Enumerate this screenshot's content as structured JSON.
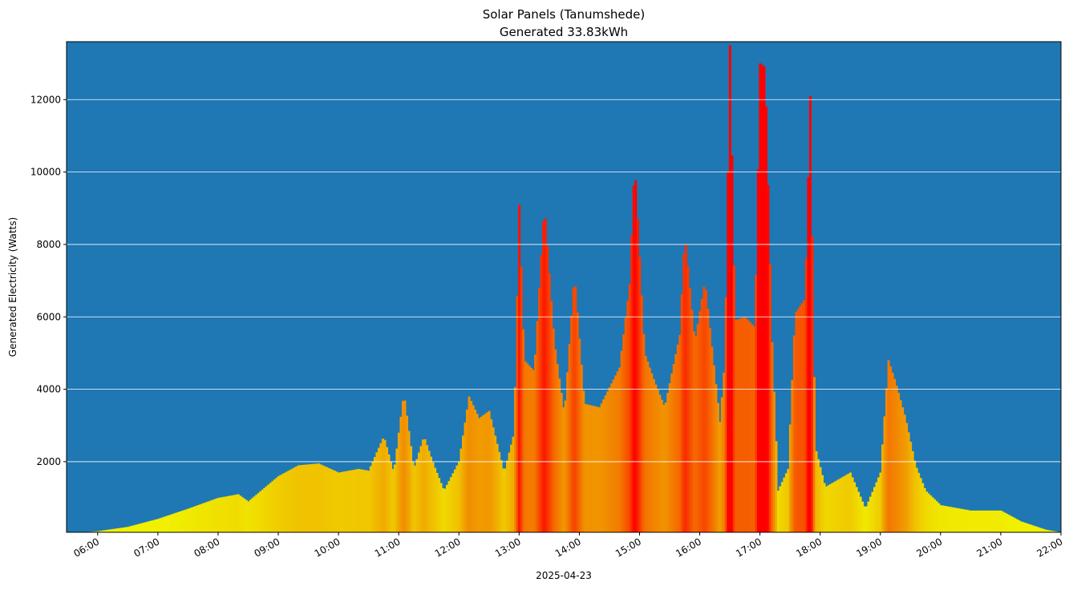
{
  "chart_data": {
    "type": "bar",
    "title": "Solar Panels (Tanumshede)",
    "subtitle": "Generated 33.83kWh",
    "xlabel": "2025-04-23",
    "ylabel": "Generated Electricity (Watts)",
    "x_range": [
      "05:29",
      "22:00"
    ],
    "ylim": [
      50,
      13600
    ],
    "y_ticks": [
      2000,
      4000,
      6000,
      8000,
      10000,
      12000
    ],
    "x_ticks": [
      "06:00",
      "07:00",
      "08:00",
      "09:00",
      "10:00",
      "11:00",
      "12:00",
      "13:00",
      "14:00",
      "15:00",
      "16:00",
      "17:00",
      "18:00",
      "19:00",
      "20:00",
      "21:00",
      "22:00"
    ],
    "grid": "horizontal",
    "legend": "none",
    "colors": {
      "plot_background": "#1f77b4",
      "low": "#f0f000",
      "mid": "#f0a000",
      "high": "#ff0000",
      "grid": "#ffffff"
    },
    "bar_interval_minutes": 2,
    "profile": [
      [
        "05:45",
        50
      ],
      [
        "06:00",
        80
      ],
      [
        "06:30",
        200
      ],
      [
        "07:00",
        420
      ],
      [
        "07:30",
        700
      ],
      [
        "08:00",
        1000
      ],
      [
        "08:20",
        1100
      ],
      [
        "08:30",
        900
      ],
      [
        "09:00",
        1600
      ],
      [
        "09:20",
        1900
      ],
      [
        "09:40",
        1950
      ],
      [
        "10:00",
        1700
      ],
      [
        "10:20",
        1800
      ],
      [
        "10:30",
        1750
      ],
      [
        "10:45",
        2700
      ],
      [
        "10:55",
        1700
      ],
      [
        "11:05",
        3900
      ],
      [
        "11:15",
        1800
      ],
      [
        "11:25",
        2700
      ],
      [
        "11:35",
        1900
      ],
      [
        "11:45",
        1200
      ],
      [
        "12:00",
        2000
      ],
      [
        "12:10",
        3800
      ],
      [
        "12:20",
        3200
      ],
      [
        "12:30",
        3400
      ],
      [
        "12:45",
        1700
      ],
      [
        "12:55",
        2800
      ],
      [
        "13:00",
        9100
      ],
      [
        "13:05",
        4800
      ],
      [
        "13:15",
        4500
      ],
      [
        "13:25",
        9100
      ],
      [
        "13:35",
        5300
      ],
      [
        "13:45",
        3300
      ],
      [
        "13:55",
        7200
      ],
      [
        "14:05",
        3600
      ],
      [
        "14:20",
        3500
      ],
      [
        "14:40",
        4600
      ],
      [
        "14:50",
        6900
      ],
      [
        "14:55",
        10300
      ],
      [
        "15:05",
        5000
      ],
      [
        "15:15",
        4200
      ],
      [
        "15:25",
        3500
      ],
      [
        "15:40",
        5500
      ],
      [
        "15:45",
        8300
      ],
      [
        "15:55",
        5300
      ],
      [
        "16:05",
        7000
      ],
      [
        "16:20",
        3100
      ],
      [
        "16:25",
        4800
      ],
      [
        "16:30",
        13500
      ],
      [
        "16:35",
        5900
      ],
      [
        "16:45",
        6000
      ],
      [
        "16:55",
        5700
      ],
      [
        "17:00",
        13000
      ],
      [
        "17:05",
        12900
      ],
      [
        "17:12",
        5300
      ],
      [
        "17:18",
        1200
      ],
      [
        "17:28",
        1800
      ],
      [
        "17:35",
        6100
      ],
      [
        "17:45",
        6500
      ],
      [
        "17:50",
        12100
      ],
      [
        "17:55",
        2400
      ],
      [
        "18:05",
        1300
      ],
      [
        "18:30",
        1700
      ],
      [
        "18:45",
        700
      ],
      [
        "19:00",
        1700
      ],
      [
        "19:08",
        4800
      ],
      [
        "19:15",
        4200
      ],
      [
        "19:25",
        3200
      ],
      [
        "19:35",
        1900
      ],
      [
        "19:45",
        1200
      ],
      [
        "20:00",
        800
      ],
      [
        "20:30",
        650
      ],
      [
        "20:45",
        650
      ],
      [
        "21:00",
        650
      ],
      [
        "21:20",
        350
      ],
      [
        "21:45",
        120
      ],
      [
        "22:00",
        50
      ]
    ]
  }
}
